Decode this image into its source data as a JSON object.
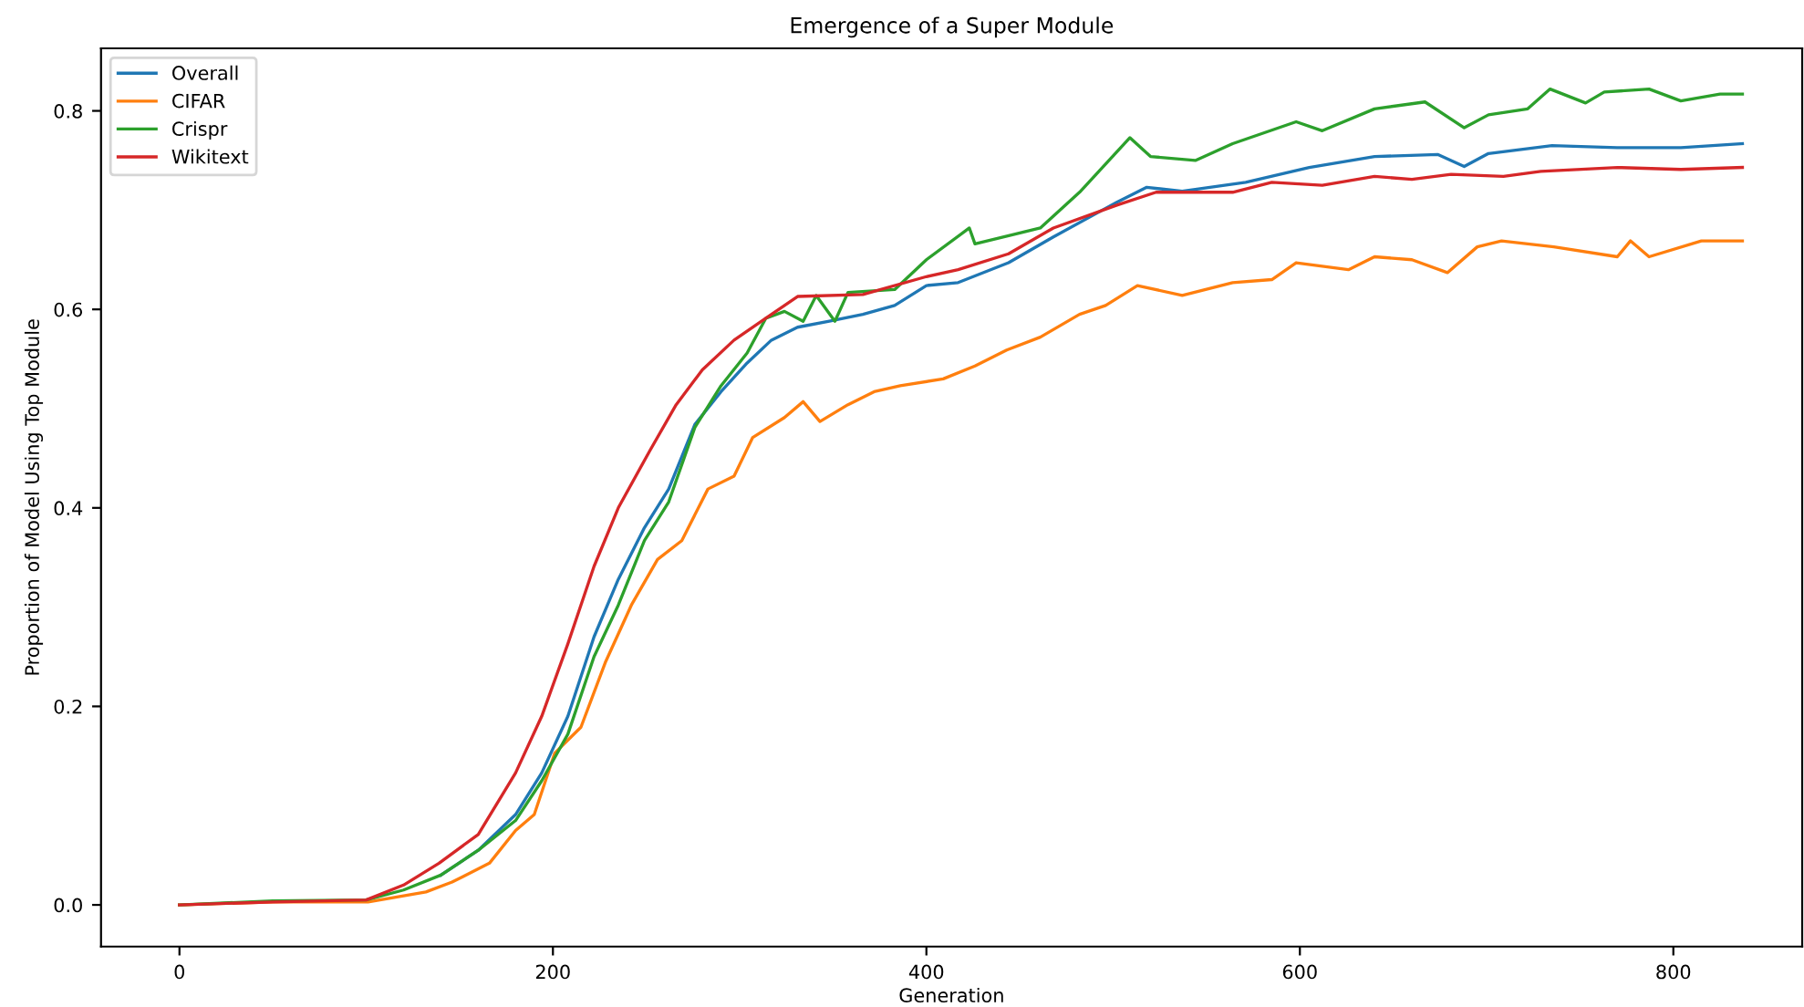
{
  "chart_data": {
    "type": "line",
    "title": "Emergence of a Super Module",
    "xlabel": "Generation",
    "ylabel": "Proportion of Model Using Top Module",
    "xlim": [
      -42,
      869
    ],
    "ylim": [
      -0.042,
      0.863
    ],
    "xticks": [
      0,
      200,
      400,
      600,
      800
    ],
    "yticks": [
      {
        "value": 0,
        "label": "0.0"
      },
      0.2,
      0.4,
      0.6,
      0.8
    ],
    "grid": false,
    "legend": "top left",
    "marker": "none",
    "line_style": "solid",
    "series": [
      {
        "name": "Overall",
        "color": "#1f77b4",
        "x": [
          140,
          160,
          180,
          194,
          208,
          222,
          235,
          249,
          262,
          276,
          290,
          304,
          317,
          331,
          348,
          366,
          383,
          400,
          417,
          444,
          468,
          502,
          518,
          537,
          571,
          605,
          640,
          674,
          688,
          701,
          735,
          770,
          804,
          837
        ],
        "values": [
          0.03,
          0.055,
          0.091,
          0.133,
          0.19,
          0.27,
          0.328,
          0.38,
          0.419,
          0.484,
          0.517,
          0.546,
          0.569,
          0.582,
          0.588,
          0.595,
          0.604,
          0.624,
          0.627,
          0.647,
          0.673,
          0.708,
          0.723,
          0.719,
          0.728,
          0.743,
          0.754,
          0.756,
          0.744,
          0.757,
          0.765,
          0.763,
          0.763,
          0.767
        ]
      },
      {
        "name": "CIFAR",
        "color": "#ff7f0e",
        "x": [
          0,
          50,
          101,
          132,
          146,
          166,
          180,
          190,
          201,
          215,
          228,
          242,
          256,
          269,
          283,
          297,
          307,
          324,
          334,
          343,
          358,
          372,
          386,
          409,
          426,
          443,
          461,
          482,
          496,
          513,
          537,
          564,
          585,
          598,
          626,
          640,
          660,
          679,
          695,
          708,
          736,
          770,
          777,
          787,
          815,
          837
        ],
        "values": [
          0.0,
          0.003,
          0.003,
          0.013,
          0.023,
          0.042,
          0.075,
          0.091,
          0.153,
          0.179,
          0.244,
          0.302,
          0.348,
          0.367,
          0.419,
          0.432,
          0.471,
          0.491,
          0.507,
          0.487,
          0.504,
          0.517,
          0.523,
          0.53,
          0.543,
          0.559,
          0.572,
          0.595,
          0.604,
          0.624,
          0.614,
          0.627,
          0.63,
          0.647,
          0.64,
          0.653,
          0.65,
          0.637,
          0.663,
          0.669,
          0.663,
          0.653,
          0.669,
          0.653,
          0.669,
          0.669
        ]
      },
      {
        "name": "Crispr",
        "color": "#2ca02c",
        "x": [
          0,
          50,
          100,
          120,
          140,
          160,
          180,
          194,
          208,
          222,
          235,
          249,
          262,
          276,
          290,
          304,
          314,
          324,
          334,
          341,
          351,
          358,
          383,
          400,
          423,
          426,
          461,
          482,
          509,
          520,
          544,
          564,
          598,
          612,
          640,
          667,
          688,
          701,
          722,
          734,
          753,
          763,
          787,
          804,
          825,
          837
        ],
        "values": [
          0.0,
          0.004,
          0.005,
          0.015,
          0.03,
          0.055,
          0.085,
          0.125,
          0.172,
          0.25,
          0.302,
          0.367,
          0.406,
          0.481,
          0.523,
          0.556,
          0.591,
          0.598,
          0.588,
          0.614,
          0.588,
          0.617,
          0.62,
          0.65,
          0.682,
          0.666,
          0.682,
          0.718,
          0.773,
          0.754,
          0.75,
          0.767,
          0.789,
          0.78,
          0.802,
          0.809,
          0.783,
          0.796,
          0.802,
          0.822,
          0.808,
          0.819,
          0.822,
          0.81,
          0.817,
          0.817
        ]
      },
      {
        "name": "Wikitext",
        "color": "#d62728",
        "x": [
          0,
          50,
          100,
          120,
          139,
          160,
          180,
          194,
          208,
          222,
          235,
          252,
          266,
          280,
          297,
          314,
          331,
          366,
          400,
          417,
          444,
          468,
          502,
          523,
          564,
          585,
          612,
          640,
          660,
          681,
          709,
          729,
          770,
          804,
          837
        ],
        "values": [
          0.0,
          0.003,
          0.005,
          0.02,
          0.042,
          0.071,
          0.133,
          0.19,
          0.263,
          0.341,
          0.4,
          0.458,
          0.504,
          0.539,
          0.569,
          0.591,
          0.613,
          0.615,
          0.633,
          0.64,
          0.656,
          0.682,
          0.705,
          0.718,
          0.718,
          0.728,
          0.725,
          0.734,
          0.731,
          0.736,
          0.734,
          0.739,
          0.743,
          0.741,
          0.743
        ]
      }
    ]
  }
}
